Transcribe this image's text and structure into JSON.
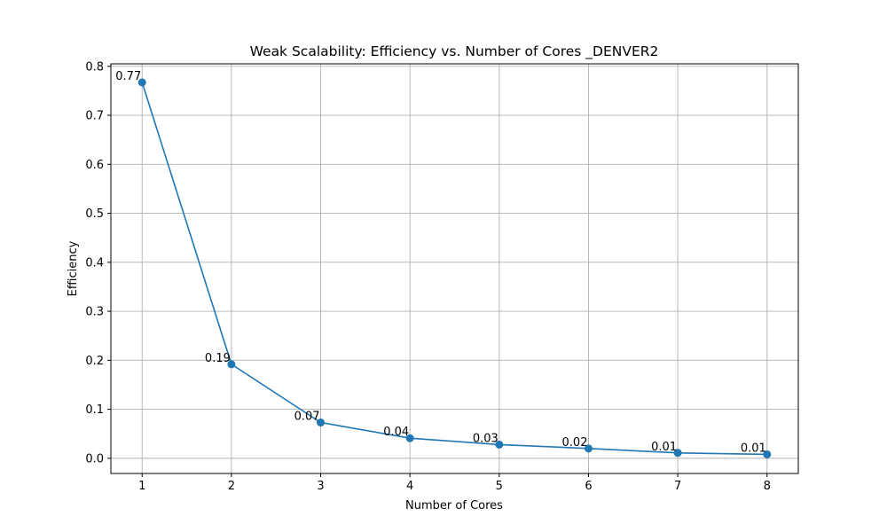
{
  "chart_data": {
    "type": "line",
    "title": "Weak Scalability: Efficiency vs. Number of Cores _DENVER2",
    "xlabel": "Number of Cores",
    "ylabel": "Efficiency",
    "x": [
      1,
      2,
      3,
      4,
      5,
      6,
      7,
      8
    ],
    "series": [
      {
        "values": [
          0.767,
          0.192,
          0.073,
          0.041,
          0.028,
          0.02,
          0.011,
          0.008
        ],
        "labels": [
          "0.77",
          "0.19",
          "0.07",
          "0.04",
          "0.03",
          "0.02",
          "0.01",
          "0.01"
        ],
        "color": "#1f77b4",
        "marker": "circle"
      }
    ],
    "xlim": [
      0.65,
      8.35
    ],
    "ylim": [
      -0.031,
      0.805
    ],
    "xticks": [
      1,
      2,
      3,
      4,
      5,
      6,
      7,
      8
    ],
    "yticks": [
      0.0,
      0.1,
      0.2,
      0.3,
      0.4,
      0.5,
      0.6,
      0.7,
      0.8
    ],
    "ytick_labels": [
      "0.0",
      "0.1",
      "0.2",
      "0.3",
      "0.4",
      "0.5",
      "0.6",
      "0.7",
      "0.8"
    ],
    "grid": true,
    "legend": "none"
  }
}
